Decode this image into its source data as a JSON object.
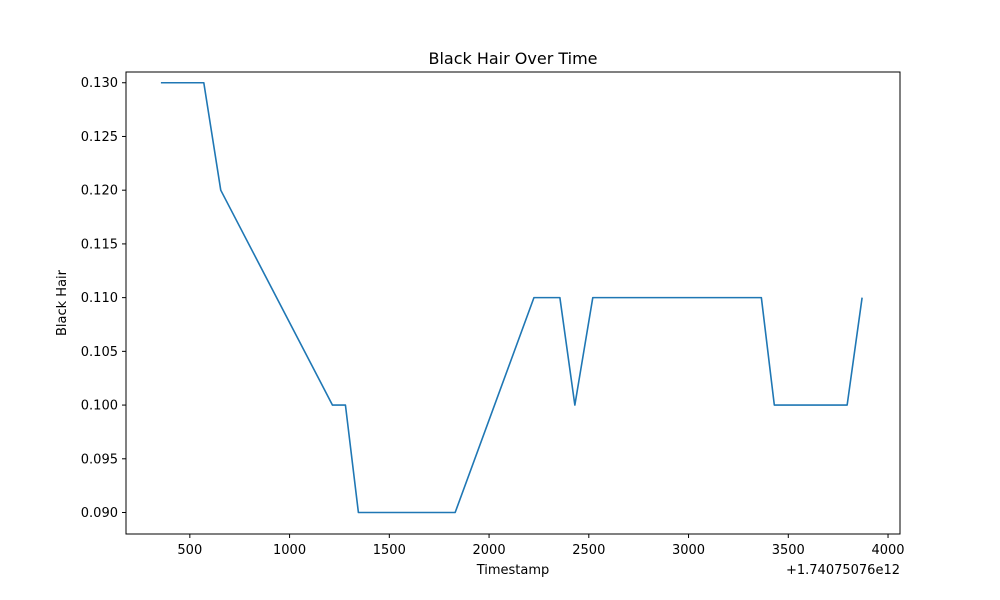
{
  "chart_data": {
    "type": "line",
    "title": "Black Hair Over Time",
    "xlabel": "Timestamp",
    "ylabel": "Black Hair",
    "x_offset_label": "+1.74075076e12",
    "xlim": [
      180,
      4060
    ],
    "ylim": [
      0.088,
      0.131
    ],
    "x_ticks": [
      500,
      1000,
      1500,
      2000,
      2500,
      3000,
      3500,
      4000
    ],
    "y_ticks": [
      0.09,
      0.095,
      0.1,
      0.105,
      0.11,
      0.115,
      0.12,
      0.125,
      0.13
    ],
    "y_tick_decimals": 3,
    "grid": false,
    "line_color": "#1f77b4",
    "series": [
      {
        "x": [
          355,
          570,
          655,
          1215,
          1280,
          1345,
          1830,
          2225,
          2355,
          2430,
          2520,
          3365,
          3430,
          3795,
          3870
        ],
        "y": [
          0.13,
          0.13,
          0.12,
          0.1,
          0.1,
          0.09,
          0.09,
          0.11,
          0.11,
          0.1,
          0.11,
          0.11,
          0.1,
          0.1,
          0.11
        ]
      }
    ]
  }
}
